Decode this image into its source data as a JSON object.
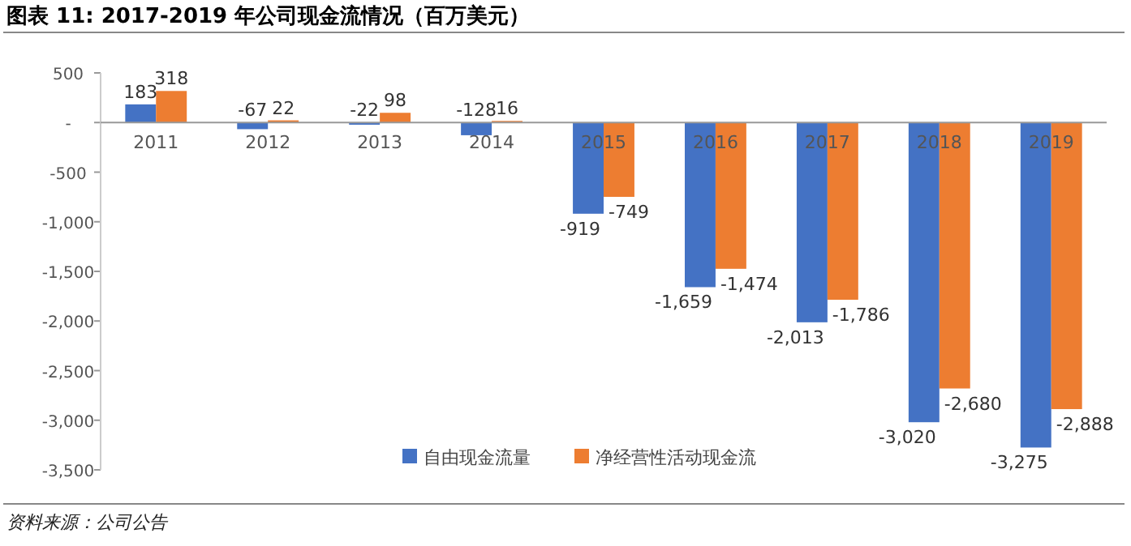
{
  "chart_data": {
    "type": "bar",
    "title": "图表 11:    2017-2019 年公司现金流情况（百万美元）",
    "categories": [
      "2011",
      "2012",
      "2013",
      "2014",
      "2015",
      "2016",
      "2017",
      "2018",
      "2019"
    ],
    "series": [
      {
        "name": "自由现金流量",
        "color": "#4472c4",
        "values": [
          183,
          -67,
          -22,
          -128,
          -919,
          -1659,
          -2013,
          -3020,
          -3275
        ],
        "value_labels": [
          "183",
          "-67",
          "-22",
          "-128",
          "-919",
          "-1,659",
          "-2,013",
          "-3,020",
          "-3,275"
        ]
      },
      {
        "name": "净经营性活动现金流",
        "color": "#ed7d31",
        "values": [
          318,
          22,
          98,
          16,
          -749,
          -1474,
          -1786,
          -2680,
          -2888
        ],
        "value_labels": [
          "318",
          "22",
          "98",
          "16",
          "-749",
          "-1,474",
          "-1,786",
          "-2,680",
          "-2,888"
        ]
      }
    ],
    "ylim": [
      -3500,
      500
    ],
    "yticks": [
      500,
      {
        "value": 0,
        "label": "-"
      },
      {
        "value": -500,
        "label": "-500"
      },
      {
        "value": -1000,
        "label": "-1,000"
      },
      {
        "value": -1500,
        "label": "-1,500"
      },
      {
        "value": -2000,
        "label": "-2,000"
      },
      {
        "value": -2500,
        "label": "-2,500"
      },
      {
        "value": -3000,
        "label": "-3,000"
      },
      {
        "value": -3500,
        "label": "-3,500"
      }
    ],
    "legend": "bottom",
    "grid": false,
    "annotations": [
      "资料来源：公司公告"
    ]
  }
}
